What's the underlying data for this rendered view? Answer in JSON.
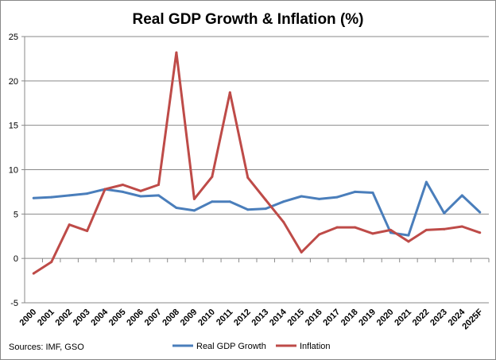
{
  "chart_data": {
    "type": "line",
    "title": "Real GDP Growth & Inflation (%)",
    "categories": [
      "2000",
      "2001",
      "2002",
      "2003",
      "2004",
      "2005",
      "2006",
      "2007",
      "2008",
      "2009",
      "2010",
      "2011",
      "2012",
      "2013",
      "2014",
      "2015",
      "2016",
      "2017",
      "2018",
      "2019",
      "2020",
      "2021",
      "2022",
      "2023",
      "2024",
      "2025F"
    ],
    "series": [
      {
        "name": "Real GDP Growth",
        "color": "#4a7ebb",
        "values": [
          6.8,
          6.9,
          7.1,
          7.3,
          7.8,
          7.5,
          7.0,
          7.1,
          5.7,
          5.4,
          6.4,
          6.4,
          5.5,
          5.6,
          6.4,
          7.0,
          6.7,
          6.9,
          7.5,
          7.4,
          2.9,
          2.6,
          8.6,
          5.1,
          7.1,
          5.2
        ]
      },
      {
        "name": "Inflation",
        "color": "#be4b48",
        "values": [
          -1.7,
          -0.4,
          3.8,
          3.1,
          7.8,
          8.3,
          7.6,
          8.3,
          23.2,
          6.7,
          9.2,
          18.7,
          9.1,
          6.6,
          4.1,
          0.7,
          2.7,
          3.5,
          3.5,
          2.8,
          3.2,
          1.9,
          3.2,
          3.3,
          3.6,
          2.9
        ]
      }
    ],
    "ylim": [
      -5,
      25
    ],
    "yticks": [
      -5,
      0,
      5,
      10,
      15,
      20,
      25
    ],
    "grid": true,
    "legend": "bottom",
    "note": "Sources: IMF, GSO"
  }
}
